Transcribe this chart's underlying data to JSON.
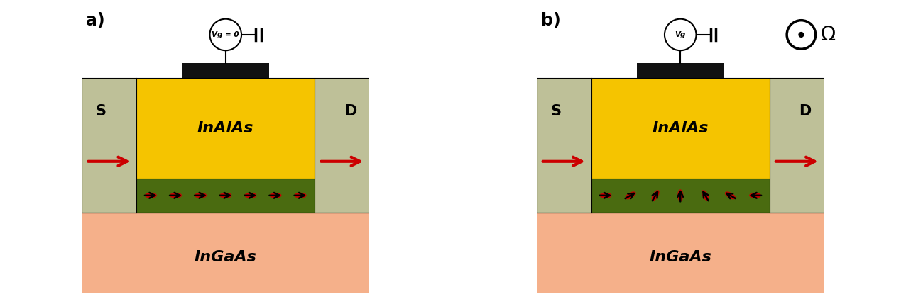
{
  "fig_width": 12.76,
  "fig_height": 4.22,
  "bg_color": "#ffffff",
  "panel_a": {
    "label": "a)",
    "gate_label": "Vg = 0",
    "source_label": "S",
    "drain_label": "D",
    "inalas_label": "InAlAs",
    "ingaas_label": "InGaAs",
    "contact_color": "#bec098",
    "inalas_color": "#f5c400",
    "channel_color": "#4a6b10",
    "ingaas_color": "#f5b08a",
    "gate_color": "#111111",
    "spins_aligned": true
  },
  "panel_b": {
    "label": "b)",
    "gate_label": "Vg",
    "source_label": "S",
    "drain_label": "D",
    "inalas_label": "InAlAs",
    "ingaas_label": "InGaAs",
    "contact_color": "#bec098",
    "inalas_color": "#f5c400",
    "channel_color": "#4a6b10",
    "ingaas_color": "#f5b08a",
    "gate_color": "#111111",
    "spins_aligned": false
  },
  "arrow_color": "#cc0000",
  "spin_color": "#cc0000",
  "text_color": "#111111",
  "spin_angles_a": [
    0,
    0,
    0,
    0,
    0,
    0,
    0
  ],
  "spin_angles_b": [
    0,
    30,
    60,
    90,
    120,
    150,
    180
  ]
}
